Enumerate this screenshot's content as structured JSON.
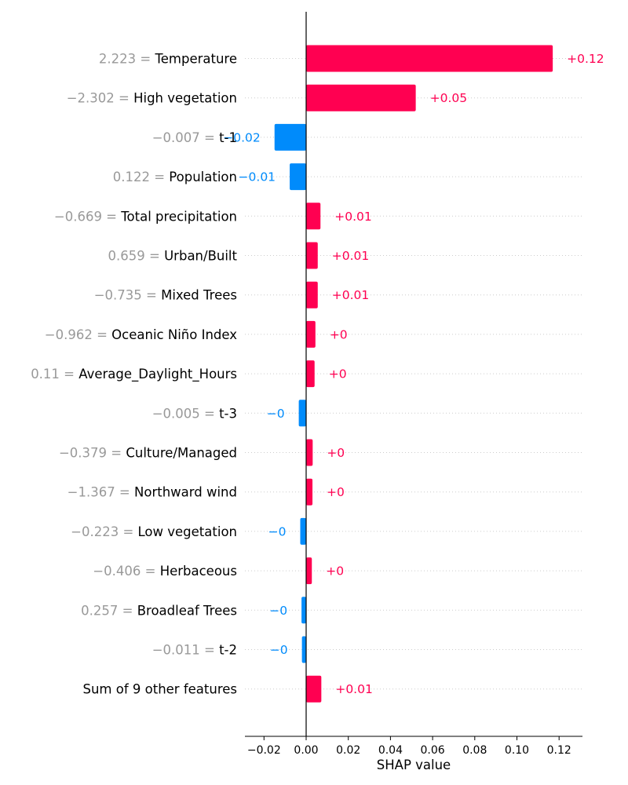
{
  "chart_data": {
    "type": "bar",
    "orientation": "horizontal",
    "xlabel": "SHAP value",
    "xlim": [
      -0.029,
      0.131
    ],
    "xticks": [
      -0.02,
      0.0,
      0.02,
      0.04,
      0.06,
      0.08,
      0.1,
      0.12
    ],
    "xtick_labels": [
      "−0.02",
      "0.00",
      "0.02",
      "0.04",
      "0.06",
      "0.08",
      "0.10",
      "0.12"
    ],
    "grid": false,
    "colors": {
      "positive": "#ff0051",
      "negative": "#008bfb",
      "feature_value_text": "#999999"
    },
    "features": [
      {
        "value_text": "2.223 =",
        "name": "Temperature",
        "shap": 0.117,
        "label": "+0.12"
      },
      {
        "value_text": "−2.302 =",
        "name": "High vegetation",
        "shap": 0.052,
        "label": "+0.05"
      },
      {
        "value_text": "−0.007 =",
        "name": "t-1",
        "shap": -0.015,
        "label": "−0.02"
      },
      {
        "value_text": "0.122 =",
        "name": "Population",
        "shap": -0.0078,
        "label": "−0.01"
      },
      {
        "value_text": "−0.669 =",
        "name": "Total precipitation",
        "shap": 0.0068,
        "label": "+0.01"
      },
      {
        "value_text": "0.659 =",
        "name": "Urban/Built",
        "shap": 0.0055,
        "label": "+0.01"
      },
      {
        "value_text": "−0.735 =",
        "name": "Mixed Trees",
        "shap": 0.0055,
        "label": "+0.01"
      },
      {
        "value_text": "−0.962 =",
        "name": "Oceanic Niño Index",
        "shap": 0.0044,
        "label": "+0"
      },
      {
        "value_text": "0.11 =",
        "name": "Average_Daylight_Hours",
        "shap": 0.004,
        "label": "+0"
      },
      {
        "value_text": "−0.005 =",
        "name": "t-3",
        "shap": -0.0035,
        "label": "−0"
      },
      {
        "value_text": "−0.379 =",
        "name": "Culture/Managed",
        "shap": 0.0031,
        "label": "+0"
      },
      {
        "value_text": "−1.367 =",
        "name": "Northward wind",
        "shap": 0.003,
        "label": "+0"
      },
      {
        "value_text": "−0.223 =",
        "name": "Low vegetation",
        "shap": -0.0028,
        "label": "−0"
      },
      {
        "value_text": "−0.406 =",
        "name": "Herbaceous",
        "shap": 0.0027,
        "label": "+0"
      },
      {
        "value_text": "0.257 =",
        "name": "Broadleaf Trees",
        "shap": -0.0022,
        "label": "−0"
      },
      {
        "value_text": "−0.011 =",
        "name": "t-2",
        "shap": -0.002,
        "label": "−0"
      },
      {
        "value_text": "",
        "name": "Sum of 9 other features",
        "shap": 0.0072,
        "label": "+0.01"
      }
    ]
  }
}
